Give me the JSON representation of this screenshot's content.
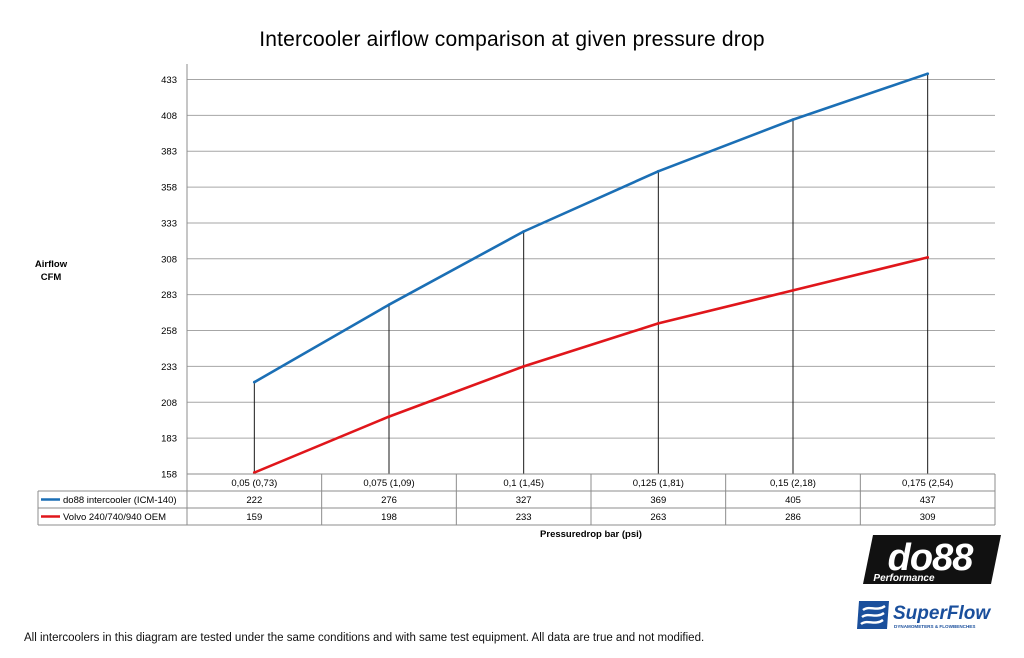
{
  "chart_data": {
    "type": "line",
    "title": "Intercooler airflow comparison at given pressure drop",
    "ylabel": [
      "Airflow",
      "CFM"
    ],
    "xlabel": "Pressuredrop bar (psi)",
    "categories": [
      "0,05 (0,73)",
      "0,075 (1,09)",
      "0,1 (1,45)",
      "0,125 (1,81)",
      "0,15 (2,18)",
      "0,175 (2,54)"
    ],
    "yticks": [
      158,
      183,
      208,
      233,
      258,
      283,
      308,
      333,
      358,
      383,
      408,
      433
    ],
    "ylim": [
      158,
      441
    ],
    "grid": true,
    "legend": "table-below",
    "series": [
      {
        "name": "do88 intercooler (ICM-140)",
        "color": "#1b6fb5",
        "values": [
          222,
          276,
          327,
          369,
          405,
          437
        ]
      },
      {
        "name": "Volvo 240/740/940 OEM",
        "color": "#e0161b",
        "values": [
          159,
          198,
          233,
          263,
          286,
          309
        ]
      }
    ]
  },
  "footnote": "All intercoolers in this diagram are tested under the same conditions and with same test equipment. All data are true and not modified.",
  "logos": {
    "do88": {
      "name": "do88",
      "sub": "Performance"
    },
    "superflow": {
      "name": "SuperFlow",
      "sub": "DYNAMOMETERS & FLOWBENCHES"
    }
  }
}
